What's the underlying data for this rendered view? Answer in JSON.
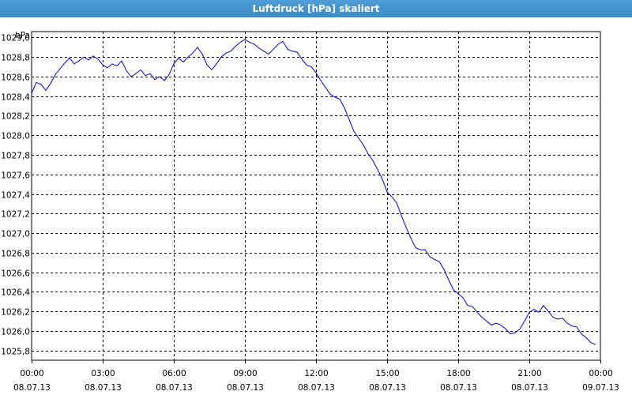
{
  "window": {
    "title": "Luftdruck [hPa] skaliert"
  },
  "chart_data": {
    "type": "line",
    "title": "Luftdruck [hPa] skaliert",
    "ylabel": "hPa",
    "xlabel": "",
    "ylim": [
      1025.7,
      1029.06
    ],
    "y_ticks": [
      "1029,0",
      "1028,8",
      "1028,6",
      "1028,4",
      "1028,2",
      "1028,0",
      "1027,8",
      "1027,6",
      "1027,4",
      "1027,2",
      "1027,0",
      "1026,8",
      "1026,6",
      "1026,4",
      "1026,2",
      "1026,0",
      "1025,8"
    ],
    "y_tick_values": [
      1029.0,
      1028.8,
      1028.6,
      1028.4,
      1028.2,
      1028.0,
      1027.8,
      1027.6,
      1027.4,
      1027.2,
      1027.0,
      1026.8,
      1026.6,
      1026.4,
      1026.2,
      1026.0,
      1025.8
    ],
    "x_range_hours": [
      0,
      24
    ],
    "x_ticks": [
      {
        "time": "00:00",
        "date": "08.07.13",
        "hour": 0
      },
      {
        "time": "03:00",
        "date": "08.07.13",
        "hour": 3
      },
      {
        "time": "06:00",
        "date": "08.07.13",
        "hour": 6
      },
      {
        "time": "09:00",
        "date": "08.07.13",
        "hour": 9
      },
      {
        "time": "12:00",
        "date": "08.07.13",
        "hour": 12
      },
      {
        "time": "15:00",
        "date": "08.07.13",
        "hour": 15
      },
      {
        "time": "18:00",
        "date": "08.07.13",
        "hour": 18
      },
      {
        "time": "21:00",
        "date": "08.07.13",
        "hour": 21
      },
      {
        "time": "00:00",
        "date": "09.07.13",
        "hour": 24
      }
    ],
    "grid": true,
    "series": [
      {
        "color": "#0000cc",
        "x": [
          0.0,
          0.2,
          0.4,
          0.6,
          0.8,
          1.0,
          1.2,
          1.4,
          1.6,
          1.8,
          2.0,
          2.2,
          2.4,
          2.6,
          2.8,
          3.0,
          3.2,
          3.4,
          3.6,
          3.8,
          4.0,
          4.2,
          4.4,
          4.6,
          4.8,
          5.0,
          5.2,
          5.4,
          5.6,
          5.8,
          6.0,
          6.2,
          6.4,
          6.6,
          6.8,
          7.0,
          7.2,
          7.4,
          7.6,
          7.8,
          8.0,
          8.2,
          8.4,
          8.6,
          8.8,
          9.0,
          9.2,
          9.4,
          9.6,
          9.8,
          10.0,
          10.2,
          10.4,
          10.6,
          10.8,
          11.0,
          11.2,
          11.4,
          11.6,
          11.8,
          12.0,
          12.2,
          12.4,
          12.6,
          12.8,
          13.0,
          13.2,
          13.4,
          13.6,
          13.8,
          14.0,
          14.2,
          14.4,
          14.6,
          14.8,
          15.0,
          15.2,
          15.4,
          15.6,
          15.8,
          16.0,
          16.2,
          16.4,
          16.6,
          16.8,
          17.0,
          17.2,
          17.4,
          17.6,
          17.8,
          18.0,
          18.2,
          18.4,
          18.6,
          18.8,
          19.0,
          19.2,
          19.4,
          19.6,
          19.8,
          20.0,
          20.2,
          20.4,
          20.6,
          20.8,
          21.0,
          21.2,
          21.4,
          21.6,
          21.8,
          22.0,
          22.2,
          22.4,
          22.6,
          22.8,
          23.0,
          23.2,
          23.4,
          23.6,
          23.8
        ],
        "y": [
          1028.43,
          1028.54,
          1028.52,
          1028.46,
          1028.53,
          1028.62,
          1028.68,
          1028.74,
          1028.79,
          1028.73,
          1028.76,
          1028.8,
          1028.77,
          1028.81,
          1028.78,
          1028.72,
          1028.69,
          1028.73,
          1028.71,
          1028.76,
          1028.66,
          1028.6,
          1028.63,
          1028.67,
          1028.61,
          1028.63,
          1028.57,
          1028.6,
          1028.56,
          1028.62,
          1028.73,
          1028.79,
          1028.75,
          1028.8,
          1028.84,
          1028.9,
          1028.83,
          1028.72,
          1028.67,
          1028.73,
          1028.8,
          1028.84,
          1028.86,
          1028.91,
          1028.95,
          1028.98,
          1028.95,
          1028.93,
          1028.89,
          1028.86,
          1028.83,
          1028.88,
          1028.93,
          1028.96,
          1028.88,
          1028.86,
          1028.85,
          1028.78,
          1028.72,
          1028.7,
          1028.64,
          1028.56,
          1028.49,
          1028.42,
          1028.39,
          1028.37,
          1028.28,
          1028.16,
          1028.04,
          1027.97,
          1027.9,
          1027.81,
          1027.74,
          1027.65,
          1027.55,
          1027.42,
          1027.37,
          1027.31,
          1027.18,
          1027.06,
          1026.95,
          1026.85,
          1026.83,
          1026.83,
          1026.76,
          1026.73,
          1026.71,
          1026.63,
          1026.52,
          1026.42,
          1026.38,
          1026.34,
          1026.26,
          1026.25,
          1026.19,
          1026.14,
          1026.1,
          1026.06,
          1026.08,
          1026.06,
          1026.02,
          1025.97,
          1025.98,
          1026.02,
          1026.1,
          1026.19,
          1026.22,
          1026.19,
          1026.26,
          1026.2,
          1026.14,
          1026.12,
          1026.13,
          1026.08,
          1026.05,
          1026.04,
          1025.97,
          1025.93,
          1025.88,
          1025.86
        ]
      }
    ]
  }
}
